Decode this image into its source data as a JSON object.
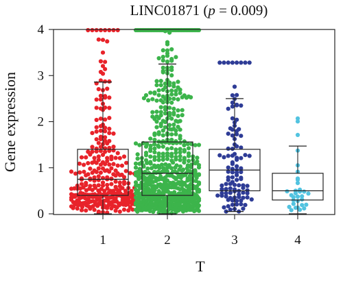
{
  "chart_data": {
    "type": "box-swarm",
    "title": {
      "prefix": "LINC01871 (",
      "p_symbol": "p",
      "suffix": " = 0.009)"
    },
    "xlabel": "T",
    "ylabel": "Gene expression",
    "ylim": [
      0,
      4
    ],
    "yticks": [
      0,
      1,
      2,
      3,
      4
    ],
    "categories": [
      "1",
      "2",
      "3",
      "4"
    ],
    "grid": false,
    "legend": "none",
    "groups": [
      {
        "category": "1",
        "color": "#e8232a",
        "n": 330,
        "min": 0.0,
        "q1": 0.4,
        "median": 0.75,
        "q3": 1.4,
        "whisker_low": 0.0,
        "whisker_high": 2.86,
        "max": 4.0
      },
      {
        "category": "2",
        "color": "#3cb44b",
        "n": 700,
        "min": 0.0,
        "q1": 0.4,
        "median": 0.88,
        "q3": 1.56,
        "whisker_low": 0.0,
        "whisker_high": 3.25,
        "max": 4.0
      },
      {
        "category": "3",
        "color": "#2e3c96",
        "n": 110,
        "min": 0.05,
        "q1": 0.5,
        "median": 0.95,
        "q3": 1.4,
        "whisker_low": 0.05,
        "whisker_high": 2.5,
        "max": 3.28
      },
      {
        "category": "4",
        "color": "#52c3e0",
        "n": 32,
        "min": 0.0,
        "q1": 0.3,
        "median": 0.5,
        "q3": 0.88,
        "whisker_low": 0.0,
        "whisker_high": 1.47,
        "max": 2.07
      }
    ]
  }
}
